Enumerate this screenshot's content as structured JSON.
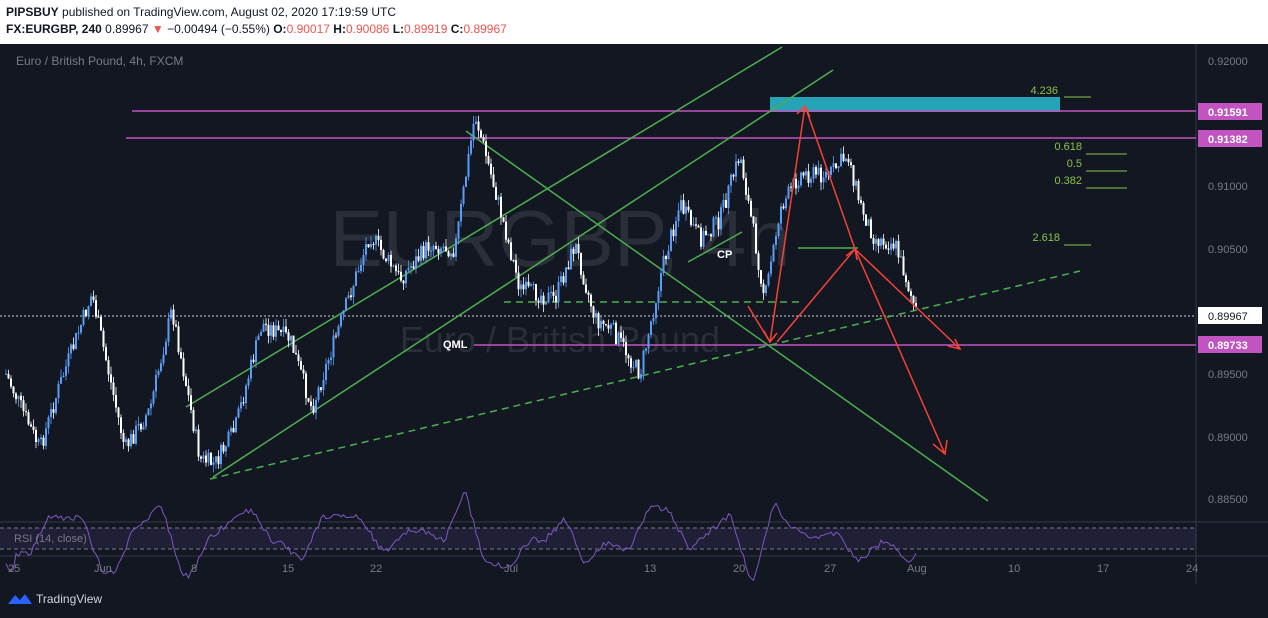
{
  "header": {
    "publisher": "PIPSBUY",
    "published_text": "published on TradingView.com, August 02, 2020 17:19:59 UTC",
    "symbol": "FX:EURGBP, 240",
    "last": "0.89967",
    "change_arrow": "▼",
    "change": "−0.00494 (−0.55%)",
    "o_label": "O:",
    "o": "0.90017",
    "h_label": "H:",
    "h": "0.90086",
    "l_label": "L:",
    "l": "0.89919",
    "c_label": "C:",
    "c": "0.89967"
  },
  "chart": {
    "series_title": "Euro / British Pound, 4h, FXCM",
    "watermark_symbol": "EURGBP, 4h",
    "watermark_name": "Euro / British Pound",
    "price_axis": [
      "0.92000",
      "0.91500",
      "0.91000",
      "0.90500",
      "0.90000",
      "0.89500",
      "0.89000",
      "0.88500"
    ],
    "price_tags": {
      "top_level": "0.91591",
      "second_level": "0.91382",
      "last_price": "0.89967",
      "qml_level": "0.89733"
    },
    "fib_labels": [
      "4.236",
      "0.618",
      "0.5",
      "0.382",
      "2.618"
    ],
    "annotations": {
      "cp": "CP",
      "qml": "QML"
    },
    "rsi_label": "RSI (14, close)",
    "time_axis": [
      "25",
      "Jun",
      "8",
      "15",
      "22",
      "Jul",
      "13",
      "20",
      "27",
      "Aug",
      "10",
      "17",
      "24"
    ],
    "colors": {
      "up": "#5b9cf6",
      "down": "#ffffff",
      "trend": "#4caf50",
      "level": "#c154c1",
      "arrow": "#f44336",
      "zone": "#26a3b7",
      "rsi": "#7e57c2"
    }
  },
  "footer": {
    "brand": "TradingView"
  }
}
